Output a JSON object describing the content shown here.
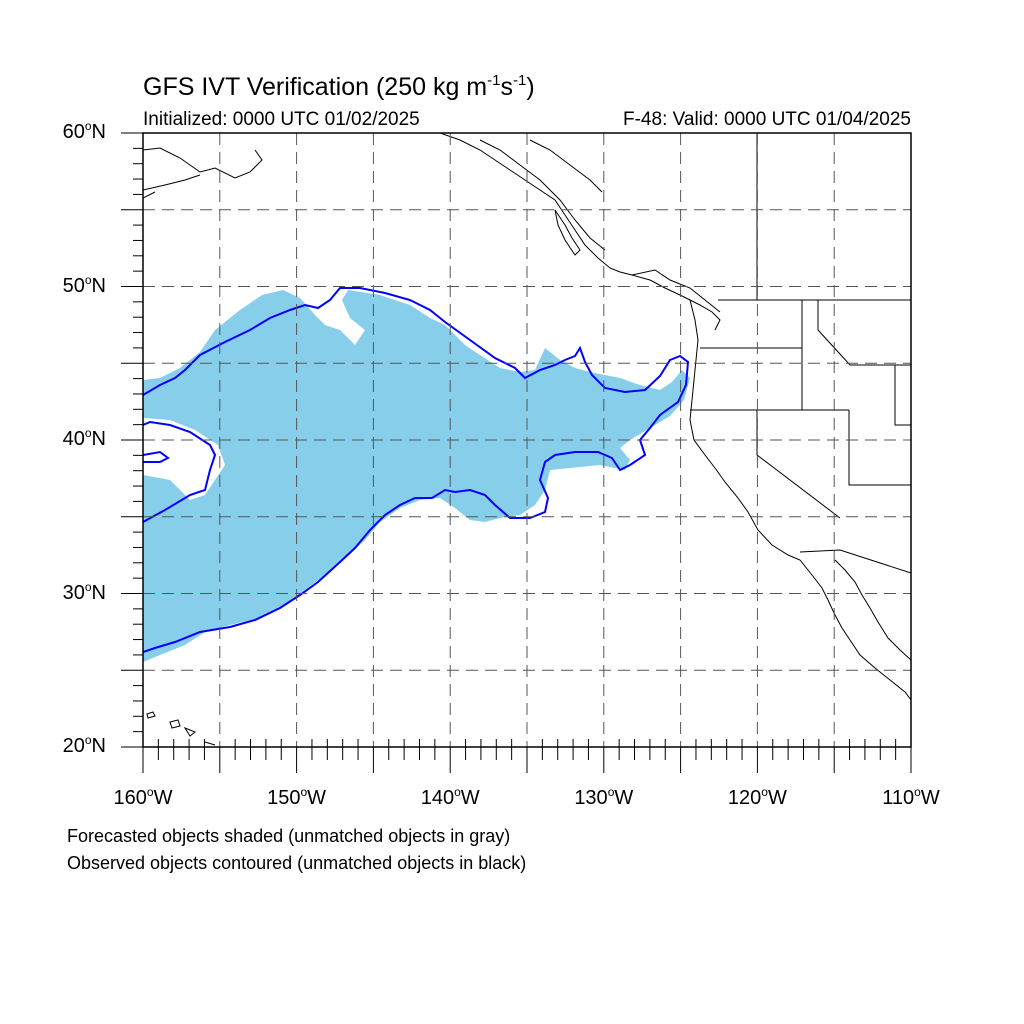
{
  "title": {
    "main": "GFS IVT Verification (250 kg m",
    "sup1": "-1",
    "mid": "s",
    "sup2": "-1",
    "end": ")"
  },
  "initialized": "Initialized: 0000 UTC 01/02/2025",
  "valid": "F-48: Valid: 0000 UTC 01/04/2025",
  "map": {
    "lon_range": [
      -160,
      -110
    ],
    "lat_range": [
      20,
      60
    ],
    "grid_style": "dashed",
    "lat_labels": [
      {
        "lat": 60,
        "num": "60",
        "deg": "o",
        "hemi": "N"
      },
      {
        "lat": 50,
        "num": "50",
        "deg": "o",
        "hemi": "N"
      },
      {
        "lat": 40,
        "num": "40",
        "deg": "o",
        "hemi": "N"
      },
      {
        "lat": 30,
        "num": "30",
        "deg": "o",
        "hemi": "N"
      },
      {
        "lat": 20,
        "num": "20",
        "deg": "o",
        "hemi": "N"
      }
    ],
    "lon_labels": [
      {
        "lon": -160,
        "num": "160",
        "deg": "o",
        "hemi": "W"
      },
      {
        "lon": -150,
        "num": "150",
        "deg": "o",
        "hemi": "W"
      },
      {
        "lon": -140,
        "num": "140",
        "deg": "o",
        "hemi": "W"
      },
      {
        "lon": -130,
        "num": "130",
        "deg": "o",
        "hemi": "W"
      },
      {
        "lon": -120,
        "num": "120",
        "deg": "o",
        "hemi": "W"
      },
      {
        "lon": -110,
        "num": "110",
        "deg": "o",
        "hemi": "W"
      }
    ],
    "colors": {
      "forecast_fill": "#87ceeb",
      "observed_contour": "#0000ff",
      "coastline": "#000000"
    }
  },
  "captions": {
    "line1": "Forecasted objects shaded (unmatched objects in gray)",
    "line2": "Observed objects contoured (unmatched objects in black)"
  }
}
